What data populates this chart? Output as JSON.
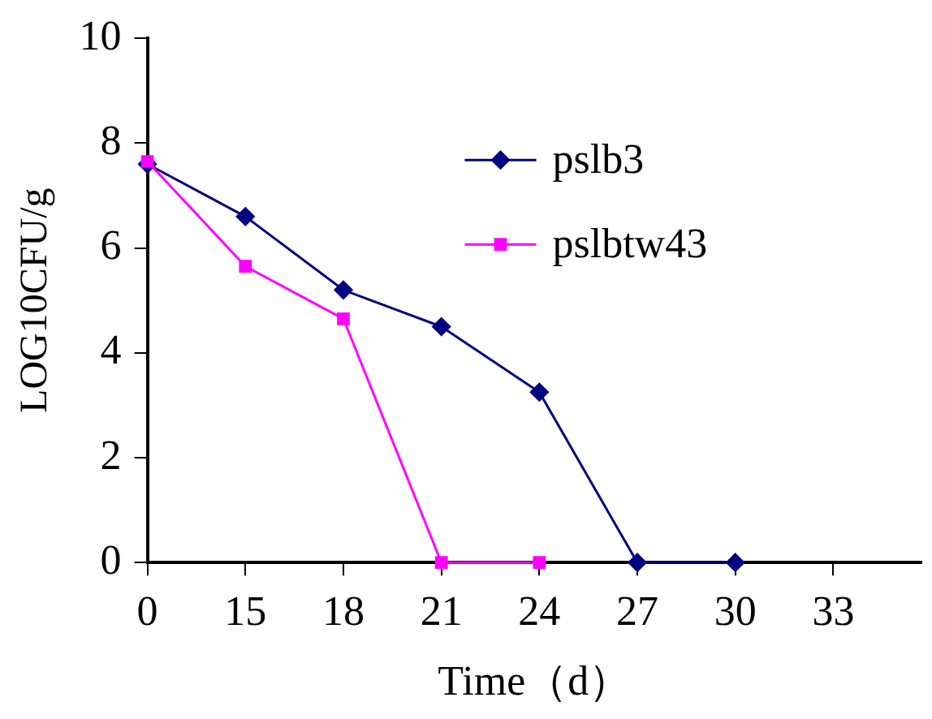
{
  "chart_data": {
    "type": "line",
    "xlabel": "Time（d）",
    "ylabel": "LOG10CFU/g",
    "categories": [
      "0",
      "15",
      "18",
      "21",
      "24",
      "27",
      "30",
      "33"
    ],
    "series": [
      {
        "name": "pslb3",
        "color": "#000080",
        "marker": "diamond",
        "values": [
          7.6,
          6.6,
          5.2,
          4.5,
          3.25,
          0,
          0,
          null
        ]
      },
      {
        "name": "pslbtw43",
        "color": "#ff00ff",
        "marker": "square",
        "values": [
          7.65,
          5.65,
          4.65,
          0,
          0,
          null,
          null,
          null
        ]
      }
    ],
    "ylim": [
      0,
      10
    ],
    "yticks": [
      0,
      2,
      4,
      6,
      8,
      10
    ],
    "grid": false,
    "legend": "top right",
    "line_style": "solid"
  }
}
